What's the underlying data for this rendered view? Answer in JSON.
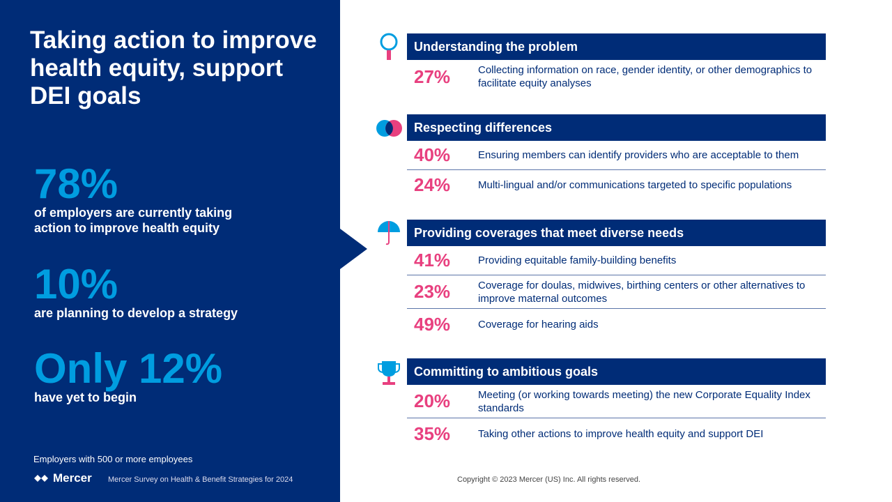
{
  "left": {
    "title": "Taking action to improve health equity, support DEI goals",
    "stats": [
      {
        "value": "78%",
        "text": "of employers are currently taking action to improve health equity"
      },
      {
        "value": "10%",
        "text": "are planning to develop a strategy"
      },
      {
        "value": "Only 12%",
        "text": "have yet to begin"
      }
    ],
    "note": "Employers with 500 or more employees",
    "logo": "Mercer",
    "survey": "Mercer Survey on Health & Benefit Strategies for 2024"
  },
  "copyright": "Copyright © 2023 Mercer (US) Inc. All rights reserved.",
  "colors": {
    "navy": "#002c77",
    "blue": "#009de0",
    "pink": "#e8407f"
  },
  "sections": [
    {
      "icon": "magnifier-icon",
      "title": "Understanding the problem",
      "rows": [
        {
          "pct": "27%",
          "text": "Collecting information on race, gender identity, or other demographics to facilitate equity analyses"
        }
      ]
    },
    {
      "icon": "overlapping-circles-icon",
      "title": "Respecting differences",
      "rows": [
        {
          "pct": "40%",
          "text": "Ensuring members can identify providers who are acceptable to them"
        },
        {
          "pct": "24%",
          "text": "Multi-lingual and/or communications targeted to specific populations"
        }
      ]
    },
    {
      "icon": "umbrella-icon",
      "title": "Providing coverages that meet diverse needs",
      "rows": [
        {
          "pct": "41%",
          "text": "Providing equitable family-building benefits"
        },
        {
          "pct": "23%",
          "text": "Coverage for doulas, midwives, birthing centers or other alternatives to improve maternal outcomes"
        },
        {
          "pct": "49%",
          "text": "Coverage for hearing aids"
        }
      ]
    },
    {
      "icon": "trophy-icon",
      "title": "Committing to ambitious goals",
      "rows": [
        {
          "pct": "20%",
          "text": "Meeting (or working towards meeting) the new Corporate Equality Index standards"
        },
        {
          "pct": "35%",
          "text": "Taking other actions to improve health equity and support DEI"
        }
      ]
    }
  ]
}
